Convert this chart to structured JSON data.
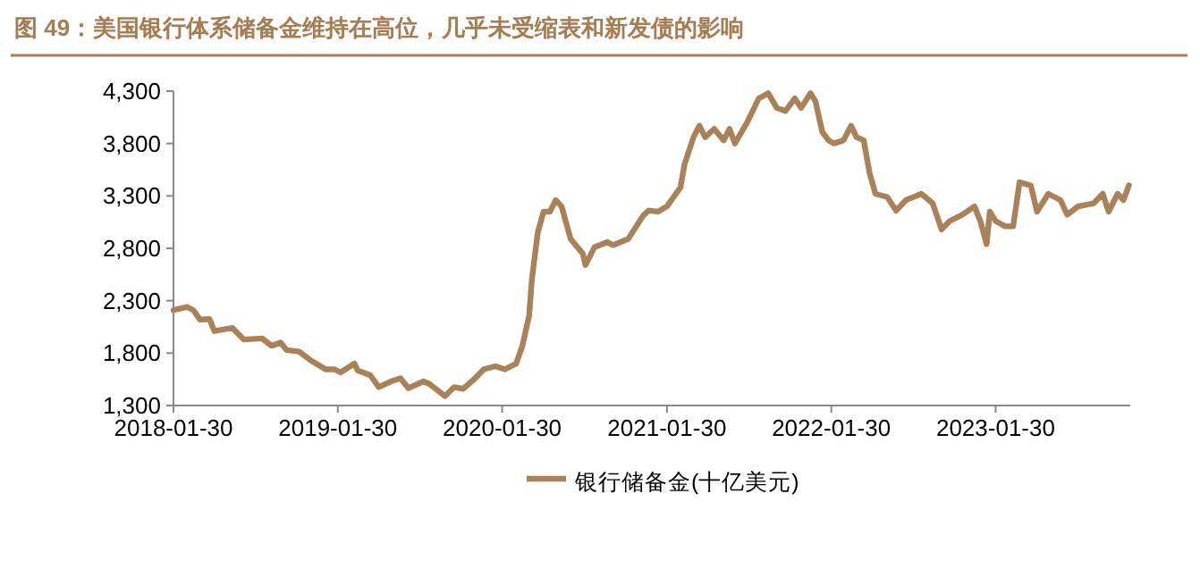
{
  "chart_data": {
    "type": "line",
    "title": "图 49：美国银行体系储备金维持在高位，几乎未受缩表和新发债的影响",
    "x": [
      "2018-01-30",
      "2018-03-02",
      "2018-03-15",
      "2018-03-30",
      "2018-04-20",
      "2018-05-01",
      "2018-06-10",
      "2018-07-05",
      "2018-08-15",
      "2018-09-05",
      "2018-09-25",
      "2018-10-08",
      "2018-11-05",
      "2018-12-01",
      "2019-01-03",
      "2019-01-23",
      "2019-02-05",
      "2019-03-08",
      "2019-03-15",
      "2019-04-12",
      "2019-05-01",
      "2019-05-28",
      "2019-06-18",
      "2019-07-06",
      "2019-08-08",
      "2019-08-22",
      "2019-09-25",
      "2019-10-15",
      "2019-11-05",
      "2019-12-01",
      "2019-12-20",
      "2020-01-15",
      "2020-02-05",
      "2020-03-01",
      "2020-03-15",
      "2020-03-30",
      "2020-04-05",
      "2020-04-18",
      "2020-05-01",
      "2020-05-15",
      "2020-05-28",
      "2020-06-10",
      "2020-06-30",
      "2020-07-27",
      "2020-08-02",
      "2020-08-22",
      "2020-09-20",
      "2020-10-02",
      "2020-11-05",
      "2020-12-08",
      "2020-12-20",
      "2021-01-10",
      "2021-01-30",
      "2021-03-01",
      "2021-03-10",
      "2021-03-30",
      "2021-04-12",
      "2021-04-25",
      "2021-05-15",
      "2021-06-05",
      "2021-06-18",
      "2021-06-30",
      "2021-07-27",
      "2021-08-22",
      "2021-09-12",
      "2021-10-01",
      "2021-10-20",
      "2021-11-10",
      "2021-11-24",
      "2021-12-15",
      "2021-12-26",
      "2022-01-10",
      "2022-01-24",
      "2022-02-05",
      "2022-02-26",
      "2022-03-15",
      "2022-03-27",
      "2022-04-12",
      "2022-04-25",
      "2022-05-08",
      "2022-06-03",
      "2022-06-23",
      "2022-07-15",
      "2022-08-18",
      "2022-09-12",
      "2022-10-02",
      "2022-10-20",
      "2022-11-17",
      "2022-12-14",
      "2022-12-27",
      "2023-01-10",
      "2023-01-17",
      "2023-01-30",
      "2023-02-20",
      "2023-03-10",
      "2023-03-24",
      "2023-04-18",
      "2023-05-02",
      "2023-05-27",
      "2023-06-23",
      "2023-07-08",
      "2023-08-01",
      "2023-09-05",
      "2023-09-25",
      "2023-10-08",
      "2023-10-28",
      "2023-11-10",
      "2023-11-22"
    ],
    "series": [
      {
        "name": "银行储备金(十亿美元)",
        "color": "#a9825a",
        "values": [
          2210,
          2240,
          2210,
          2120,
          2125,
          2010,
          2040,
          1930,
          1940,
          1870,
          1900,
          1830,
          1815,
          1730,
          1645,
          1645,
          1615,
          1700,
          1635,
          1590,
          1475,
          1530,
          1560,
          1465,
          1530,
          1505,
          1390,
          1475,
          1460,
          1560,
          1645,
          1675,
          1645,
          1700,
          1870,
          2160,
          2500,
          2950,
          3150,
          3150,
          3260,
          3200,
          2890,
          2750,
          2640,
          2810,
          2860,
          2830,
          2890,
          3110,
          3160,
          3150,
          3200,
          3380,
          3600,
          3860,
          3970,
          3860,
          3940,
          3830,
          3940,
          3800,
          4000,
          4230,
          4280,
          4140,
          4110,
          4230,
          4140,
          4280,
          4200,
          3910,
          3830,
          3800,
          3830,
          3970,
          3860,
          3830,
          3520,
          3320,
          3290,
          3160,
          3260,
          3320,
          3230,
          2980,
          3060,
          3120,
          3200,
          3060,
          2840,
          3150,
          3060,
          3010,
          3010,
          3430,
          3400,
          3150,
          3320,
          3260,
          3120,
          3200,
          3230,
          3320,
          3150,
          3320,
          3260,
          3400
        ]
      }
    ],
    "xlim": [
      "2018-01-30",
      "2023-11-25"
    ],
    "ylim": [
      1300,
      4300
    ],
    "xticks": [
      "2018-01-30",
      "2019-01-30",
      "2020-01-30",
      "2021-01-30",
      "2022-01-30",
      "2023-01-30"
    ],
    "yticks": [
      {
        "value": 1300,
        "label": "1,300"
      },
      {
        "value": 1800,
        "label": "1,800"
      },
      {
        "value": 2300,
        "label": "2,300"
      },
      {
        "value": 2800,
        "label": "2,800"
      },
      {
        "value": 3300,
        "label": "3,300"
      },
      {
        "value": 3800,
        "label": "3,800"
      },
      {
        "value": 4300,
        "label": "4,300"
      }
    ],
    "legend": "bottom"
  }
}
